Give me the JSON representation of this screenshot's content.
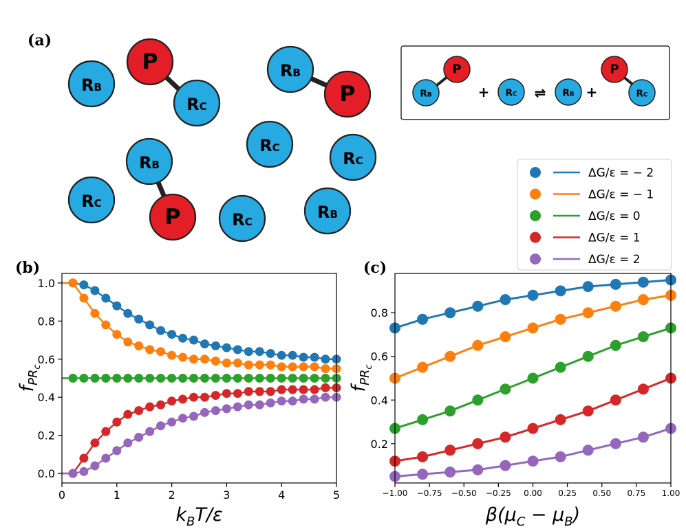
{
  "panels": {
    "a": {
      "label": "(a)"
    },
    "b": {
      "label": "(b)"
    },
    "c": {
      "label": "(c)"
    }
  },
  "molecules": {
    "P": {
      "text": "P",
      "color": "#e31e26"
    },
    "RB": {
      "main": "R",
      "sub": "B",
      "color": "#27a9e1"
    },
    "RC": {
      "main": "R",
      "sub": "C",
      "color": "#27a9e1"
    }
  },
  "reaction": {
    "plus": "+",
    "equilibrium": "⇌"
  },
  "legend": {
    "entries": [
      {
        "label": "ΔG/ε = − 2",
        "color": "#1f77b4"
      },
      {
        "label": "ΔG/ε = − 1",
        "color": "#ff7f0e"
      },
      {
        "label": "ΔG/ε = 0",
        "color": "#2ca02c"
      },
      {
        "label": "ΔG/ε = 1",
        "color": "#d62728"
      },
      {
        "label": "ΔG/ε = 2",
        "color": "#9467bd"
      }
    ]
  },
  "chart_data": [
    {
      "panel": "b",
      "type": "line",
      "xlabel": "kBT/ε",
      "ylabel": "fPRc",
      "xlim": [
        0,
        5
      ],
      "ylim": [
        -0.05,
        1.05
      ],
      "xticks": [
        0,
        1,
        2,
        3,
        4,
        5
      ],
      "yticks": [
        0.0,
        0.2,
        0.4,
        0.6,
        0.8,
        1.0
      ],
      "xtick_labels": [
        "0",
        "1",
        "2",
        "3",
        "4",
        "5"
      ],
      "ytick_labels": [
        "0.0",
        "0.2",
        "0.4",
        "0.6",
        "0.8",
        "1.0"
      ],
      "markers": "filled circles at kBT/ε = 0.2, 0.4, … 5.0",
      "series": [
        {
          "name": "ΔG/ε = − 2",
          "dG": -2
        },
        {
          "name": "ΔG/ε = − 1",
          "dG": -1
        },
        {
          "name": "ΔG/ε = 0",
          "dG": 0
        },
        {
          "name": "ΔG/ε = 1",
          "dG": 1
        },
        {
          "name": "ΔG/ε = 2",
          "dG": 2
        }
      ],
      "x": [
        0.2,
        0.4,
        0.6,
        0.8,
        1.0,
        1.2,
        1.4,
        1.6,
        1.8,
        2.0,
        2.2,
        2.4,
        2.6,
        2.8,
        3.0,
        3.2,
        3.4,
        3.6,
        3.8,
        4.0,
        4.2,
        4.4,
        4.6,
        4.8,
        5.0
      ],
      "values": {
        "ΔG/ε = − 2": [
          1.0,
          0.99,
          0.96,
          0.92,
          0.88,
          0.84,
          0.81,
          0.78,
          0.75,
          0.73,
          0.71,
          0.7,
          0.68,
          0.67,
          0.66,
          0.65,
          0.64,
          0.64,
          0.63,
          0.62,
          0.62,
          0.61,
          0.61,
          0.6,
          0.6
        ],
        "ΔG/ε = − 1": [
          1.0,
          0.92,
          0.84,
          0.78,
          0.73,
          0.69,
          0.67,
          0.65,
          0.64,
          0.62,
          0.61,
          0.6,
          0.6,
          0.59,
          0.58,
          0.58,
          0.57,
          0.57,
          0.57,
          0.56,
          0.56,
          0.56,
          0.56,
          0.55,
          0.55
        ],
        "ΔG/ε = 0": [
          0.5,
          0.5,
          0.5,
          0.5,
          0.5,
          0.5,
          0.5,
          0.5,
          0.5,
          0.5,
          0.5,
          0.5,
          0.5,
          0.5,
          0.5,
          0.5,
          0.5,
          0.5,
          0.5,
          0.5,
          0.5,
          0.5,
          0.5,
          0.5,
          0.5
        ],
        "ΔG/ε = 1": [
          0.0,
          0.08,
          0.16,
          0.22,
          0.27,
          0.31,
          0.33,
          0.35,
          0.36,
          0.38,
          0.39,
          0.4,
          0.4,
          0.41,
          0.42,
          0.42,
          0.43,
          0.43,
          0.43,
          0.44,
          0.44,
          0.44,
          0.44,
          0.45,
          0.45
        ],
        "ΔG/ε = 2": [
          0.0,
          0.01,
          0.04,
          0.08,
          0.12,
          0.16,
          0.19,
          0.22,
          0.25,
          0.27,
          0.29,
          0.3,
          0.32,
          0.33,
          0.34,
          0.35,
          0.36,
          0.36,
          0.37,
          0.38,
          0.38,
          0.39,
          0.39,
          0.4,
          0.4
        ]
      }
    },
    {
      "panel": "c",
      "type": "line",
      "xlabel": "β(μC − μB)",
      "ylabel": "fPRc",
      "xlim": [
        -1.0,
        1.0
      ],
      "ylim": [
        0.02,
        0.98
      ],
      "xticks": [
        -1.0,
        -0.75,
        -0.5,
        -0.25,
        0.0,
        0.25,
        0.5,
        0.75,
        1.0
      ],
      "yticks": [
        0.2,
        0.4,
        0.6,
        0.8
      ],
      "xtick_labels": [
        "−1.00",
        "−0.75",
        "−0.50",
        "−0.25",
        "0.00",
        "0.25",
        "0.50",
        "0.75",
        "1.00"
      ],
      "ytick_labels": [
        "0.2",
        "0.4",
        "0.6",
        "0.8"
      ],
      "markers": "filled circles at β(μC − μB) = −1.0, −0.8, … 1.0",
      "series": [
        {
          "name": "ΔG/ε = − 2",
          "dG": -2
        },
        {
          "name": "ΔG/ε = − 1",
          "dG": -1
        },
        {
          "name": "ΔG/ε = 0",
          "dG": 0
        },
        {
          "name": "ΔG/ε = 1",
          "dG": 1
        },
        {
          "name": "ΔG/ε = 2",
          "dG": 2
        }
      ],
      "x": [
        -1.0,
        -0.8,
        -0.6,
        -0.4,
        -0.2,
        0.0,
        0.2,
        0.4,
        0.6,
        0.8,
        1.0
      ],
      "values": {
        "ΔG/ε = − 2": [
          0.73,
          0.77,
          0.8,
          0.83,
          0.86,
          0.88,
          0.9,
          0.92,
          0.93,
          0.94,
          0.95
        ],
        "ΔG/ε = − 1": [
          0.5,
          0.55,
          0.6,
          0.65,
          0.69,
          0.73,
          0.77,
          0.8,
          0.83,
          0.86,
          0.88
        ],
        "ΔG/ε = 0": [
          0.27,
          0.31,
          0.35,
          0.4,
          0.45,
          0.5,
          0.55,
          0.6,
          0.65,
          0.69,
          0.73
        ],
        "ΔG/ε = 1": [
          0.12,
          0.14,
          0.17,
          0.2,
          0.23,
          0.27,
          0.31,
          0.35,
          0.4,
          0.45,
          0.5
        ],
        "ΔG/ε = 2": [
          0.05,
          0.06,
          0.07,
          0.08,
          0.1,
          0.12,
          0.14,
          0.17,
          0.2,
          0.23,
          0.27
        ]
      }
    }
  ]
}
